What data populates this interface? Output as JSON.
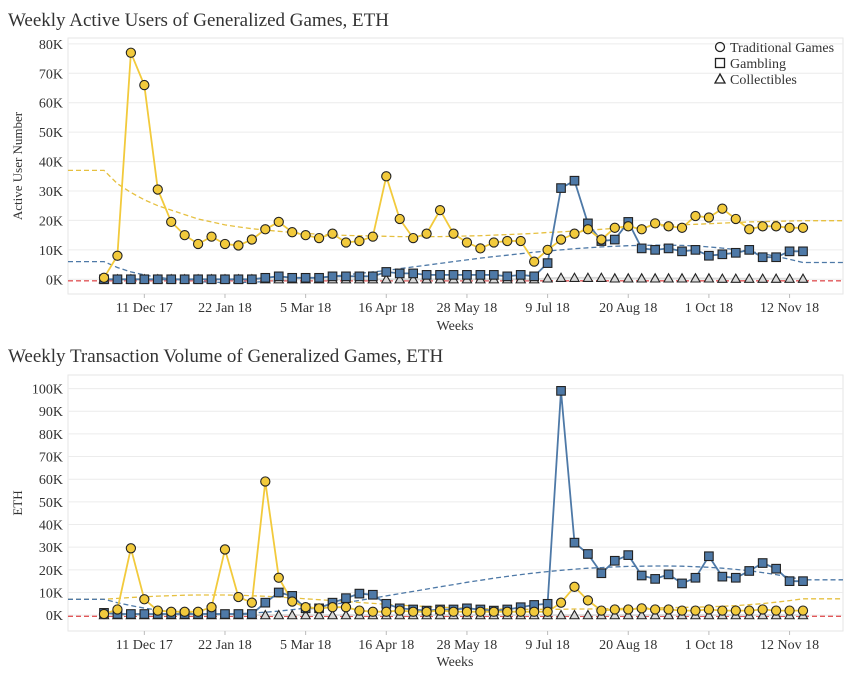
{
  "charts": {
    "colors": {
      "traditional": "#f2ca3c",
      "gambling": "#4e79a7",
      "collectibles": "#d9d9d9",
      "trend_traditional": "#e6c040",
      "trend_gambling": "#4e79a7",
      "trend_collectibles": "#e15759",
      "marker_edge": "#222222"
    },
    "x_tick_labels": [
      "11 Dec 17",
      "22 Jan 18",
      "5 Mar 18",
      "16 Apr 18",
      "28 May 18",
      "9 Jul 18",
      "20 Aug 18",
      "1 Oct 18",
      "12 Nov 18"
    ]
  },
  "chart_data": [
    {
      "type": "line",
      "title": "Weekly Active Users of Generalized Games, ETH",
      "xlabel": "Weeks",
      "ylabel": "Active User Number",
      "ylim": [
        -5000,
        82000
      ],
      "yticks": [
        0,
        10000,
        20000,
        30000,
        40000,
        50000,
        60000,
        70000,
        80000
      ],
      "ytick_labels": [
        "0K",
        "10K",
        "20K",
        "30K",
        "40K",
        "50K",
        "60K",
        "70K",
        "80K"
      ],
      "x": [
        "2017-11-20",
        "2017-11-27",
        "2017-12-04",
        "2017-12-11",
        "2017-12-18",
        "2017-12-25",
        "2018-01-01",
        "2018-01-08",
        "2018-01-15",
        "2018-01-22",
        "2018-01-29",
        "2018-02-05",
        "2018-02-12",
        "2018-02-19",
        "2018-02-26",
        "2018-03-05",
        "2018-03-12",
        "2018-03-19",
        "2018-03-26",
        "2018-04-02",
        "2018-04-09",
        "2018-04-16",
        "2018-04-23",
        "2018-04-30",
        "2018-05-07",
        "2018-05-14",
        "2018-05-21",
        "2018-05-28",
        "2018-06-04",
        "2018-06-11",
        "2018-06-18",
        "2018-06-25",
        "2018-07-02",
        "2018-07-09",
        "2018-07-16",
        "2018-07-23",
        "2018-07-30",
        "2018-08-06",
        "2018-08-13",
        "2018-08-20",
        "2018-08-27",
        "2018-09-03",
        "2018-09-10",
        "2018-09-17",
        "2018-09-24",
        "2018-10-01",
        "2018-10-08",
        "2018-10-15",
        "2018-10-22",
        "2018-10-29",
        "2018-11-05",
        "2018-11-12",
        "2018-11-19"
      ],
      "x_ticks": [
        "2017-12-11",
        "2018-01-22",
        "2018-03-05",
        "2018-04-16",
        "2018-05-28",
        "2018-07-09",
        "2018-08-20",
        "2018-10-01",
        "2018-11-12"
      ],
      "legend": "top-right",
      "grid": true,
      "series": [
        {
          "name": "Traditional Games",
          "marker": "circle",
          "values": [
            500,
            8000,
            77000,
            66000,
            30500,
            19500,
            15000,
            12000,
            14500,
            12000,
            11500,
            13500,
            17000,
            19500,
            16000,
            15000,
            14000,
            15500,
            12500,
            13000,
            14500,
            35000,
            20500,
            14000,
            15500,
            23500,
            15500,
            12500,
            10500,
            12500,
            13000,
            13000,
            6000,
            10000,
            13500,
            15500,
            17000,
            13500,
            17500,
            18000,
            17000,
            19000,
            18000,
            17500,
            21500,
            21000,
            24000,
            20500,
            17000,
            18000,
            18000,
            17500,
            17500
          ],
          "trend": [
            37000,
            32500,
            29500,
            27000,
            25000,
            23500,
            22000,
            20500,
            19500,
            18500,
            17800,
            17200,
            16700,
            16300,
            15900,
            15600,
            15300,
            15100,
            14900,
            14800,
            14700,
            14600,
            14500,
            14500,
            14500,
            14500,
            14600,
            14700,
            14800,
            15000,
            15200,
            15400,
            15600,
            15900,
            16100,
            16400,
            16700,
            17000,
            17300,
            17500,
            17800,
            18000,
            18300,
            18500,
            18700,
            18900,
            19100,
            19300,
            19500,
            19600,
            19700,
            19800,
            19900
          ]
        },
        {
          "name": "Gambling",
          "marker": "square",
          "values": [
            0,
            0,
            0,
            0,
            0,
            0,
            0,
            0,
            0,
            0,
            0,
            0,
            500,
            1000,
            500,
            500,
            500,
            1000,
            1000,
            1000,
            1000,
            2500,
            2000,
            2000,
            1500,
            1500,
            1500,
            1500,
            1500,
            1500,
            1000,
            1500,
            1000,
            5500,
            31000,
            33500,
            19000,
            13000,
            13500,
            19500,
            10500,
            10000,
            10500,
            9500,
            10000,
            8000,
            8500,
            9000,
            10000,
            7500,
            7500,
            9500,
            9500
          ],
          "trend": [
            6000,
            4000,
            2500,
            1500,
            700,
            100,
            -400,
            -800,
            -1000,
            -1100,
            -1100,
            -1000,
            -800,
            -500,
            -200,
            200,
            600,
            1000,
            1500,
            2000,
            2500,
            3000,
            3600,
            4200,
            4800,
            5400,
            6000,
            6600,
            7200,
            7700,
            8200,
            8700,
            9200,
            9600,
            10000,
            10400,
            10700,
            11000,
            11200,
            11400,
            11500,
            11600,
            11600,
            11500,
            11300,
            11000,
            10600,
            10100,
            9500,
            8700,
            7800,
            6800,
            5700
          ]
        },
        {
          "name": "Collectibles",
          "marker": "triangle",
          "values": [
            0,
            0,
            0,
            0,
            0,
            0,
            0,
            0,
            0,
            0,
            0,
            0,
            0,
            0,
            0,
            0,
            0,
            0,
            0,
            0,
            0,
            0,
            0,
            0,
            0,
            0,
            0,
            0,
            0,
            0,
            0,
            0,
            0,
            300,
            500,
            500,
            500,
            500,
            300,
            300,
            300,
            300,
            300,
            300,
            300,
            300,
            200,
            200,
            200,
            200,
            200,
            200,
            200
          ],
          "trend": [
            -500,
            -500,
            -500,
            -500,
            -500,
            -500,
            -500,
            -500,
            -500,
            -500,
            -500,
            -500,
            -500,
            -500,
            -500,
            -500,
            -500,
            -500,
            -500,
            -500,
            -500,
            -500,
            -500,
            -500,
            -500,
            -500,
            -500,
            -500,
            -500,
            -500,
            -500,
            -500,
            -500,
            -500,
            -500,
            -500,
            -500,
            -500,
            -500,
            -500,
            -500,
            -500,
            -500,
            -500,
            -500,
            -500,
            -500,
            -500,
            -500,
            -500,
            -500,
            -500,
            -500
          ]
        }
      ]
    },
    {
      "type": "line",
      "title": "Weekly Transaction Volume of Generalized Games, ETH",
      "xlabel": "Weeks",
      "ylabel": "ETH",
      "ylim": [
        -7000,
        106000
      ],
      "yticks": [
        0,
        10000,
        20000,
        30000,
        40000,
        50000,
        60000,
        70000,
        80000,
        90000,
        100000
      ],
      "ytick_labels": [
        "0K",
        "10K",
        "20K",
        "30K",
        "40K",
        "50K",
        "60K",
        "70K",
        "80K",
        "90K",
        "100K"
      ],
      "x": [
        "2017-11-20",
        "2017-11-27",
        "2017-12-04",
        "2017-12-11",
        "2017-12-18",
        "2017-12-25",
        "2018-01-01",
        "2018-01-08",
        "2018-01-15",
        "2018-01-22",
        "2018-01-29",
        "2018-02-05",
        "2018-02-12",
        "2018-02-19",
        "2018-02-26",
        "2018-03-05",
        "2018-03-12",
        "2018-03-19",
        "2018-03-26",
        "2018-04-02",
        "2018-04-09",
        "2018-04-16",
        "2018-04-23",
        "2018-04-30",
        "2018-05-07",
        "2018-05-14",
        "2018-05-21",
        "2018-05-28",
        "2018-06-04",
        "2018-06-11",
        "2018-06-18",
        "2018-06-25",
        "2018-07-02",
        "2018-07-09",
        "2018-07-16",
        "2018-07-23",
        "2018-07-30",
        "2018-08-06",
        "2018-08-13",
        "2018-08-20",
        "2018-08-27",
        "2018-09-03",
        "2018-09-10",
        "2018-09-17",
        "2018-09-24",
        "2018-10-01",
        "2018-10-08",
        "2018-10-15",
        "2018-10-22",
        "2018-10-29",
        "2018-11-05",
        "2018-11-12",
        "2018-11-19"
      ],
      "x_ticks": [
        "2017-12-11",
        "2018-01-22",
        "2018-03-05",
        "2018-04-16",
        "2018-05-28",
        "2018-07-09",
        "2018-08-20",
        "2018-10-01",
        "2018-11-12"
      ],
      "legend": "none",
      "grid": true,
      "series": [
        {
          "name": "Traditional Games",
          "marker": "circle",
          "values": [
            500,
            2500,
            29500,
            7000,
            2000,
            1500,
            1500,
            1500,
            3500,
            29000,
            8000,
            5500,
            59000,
            16500,
            6000,
            3500,
            3000,
            3500,
            3500,
            2000,
            1500,
            1500,
            2000,
            1500,
            1500,
            2000,
            1500,
            1500,
            1500,
            1500,
            1500,
            1500,
            1500,
            1500,
            5500,
            12500,
            6500,
            2000,
            2500,
            2500,
            3000,
            2500,
            2500,
            2000,
            2000,
            2500,
            2000,
            2000,
            2000,
            2500,
            2000,
            2000,
            2000
          ],
          "trend": [
            7000,
            7400,
            7800,
            8100,
            8400,
            8600,
            8800,
            8900,
            8900,
            8900,
            8800,
            8600,
            8300,
            8000,
            7600,
            7200,
            6800,
            6400,
            6000,
            5600,
            5200,
            4800,
            4400,
            4100,
            3800,
            3500,
            3300,
            3100,
            2900,
            2800,
            2700,
            2600,
            2600,
            2600,
            2600,
            2700,
            2700,
            2800,
            2900,
            3000,
            3100,
            3200,
            3300,
            3400,
            3500,
            3700,
            3900,
            4200,
            4600,
            5100,
            5700,
            6400,
            7200
          ]
        },
        {
          "name": "Gambling",
          "marker": "square",
          "values": [
            1000,
            500,
            500,
            500,
            500,
            500,
            500,
            500,
            500,
            500,
            500,
            500,
            5500,
            10000,
            8500,
            3000,
            3000,
            5500,
            7500,
            9500,
            9000,
            5000,
            3000,
            2500,
            2000,
            2500,
            2500,
            3000,
            2500,
            2000,
            2500,
            3500,
            4500,
            5000,
            99000,
            32000,
            27000,
            18500,
            24000,
            26500,
            17500,
            16000,
            18000,
            14000,
            16500,
            26000,
            17000,
            16500,
            19500,
            23000,
            20500,
            15000,
            15000
          ],
          "trend": [
            7000,
            5500,
            4200,
            3100,
            2200,
            1500,
            1000,
            700,
            500,
            500,
            600,
            900,
            1300,
            1800,
            2400,
            3100,
            3900,
            4700,
            5600,
            6500,
            7500,
            8500,
            9500,
            10500,
            11500,
            12500,
            13500,
            14500,
            15400,
            16300,
            17100,
            17900,
            18600,
            19200,
            19800,
            20300,
            20700,
            21000,
            21300,
            21500,
            21600,
            21700,
            21700,
            21600,
            21400,
            21100,
            20700,
            20200,
            19600,
            18800,
            17900,
            16800,
            15600
          ]
        },
        {
          "name": "Collectibles",
          "marker": "triangle",
          "values": [
            0,
            0,
            0,
            0,
            0,
            0,
            0,
            0,
            0,
            0,
            0,
            0,
            0,
            0,
            0,
            0,
            0,
            0,
            0,
            0,
            0,
            0,
            0,
            0,
            0,
            0,
            0,
            0,
            0,
            0,
            0,
            0,
            0,
            0,
            0,
            0,
            0,
            0,
            0,
            0,
            0,
            0,
            0,
            0,
            0,
            0,
            0,
            0,
            0,
            0,
            0,
            0,
            0
          ],
          "trend": [
            -500,
            -500,
            -500,
            -500,
            -500,
            -500,
            -500,
            -500,
            -500,
            -500,
            -500,
            -500,
            -500,
            -500,
            -500,
            -500,
            -500,
            -500,
            -500,
            -500,
            -500,
            -500,
            -500,
            -500,
            -500,
            -500,
            -500,
            -500,
            -500,
            -500,
            -500,
            -500,
            -500,
            -500,
            -500,
            -500,
            -500,
            -500,
            -500,
            -500,
            -500,
            -500,
            -500,
            -500,
            -500,
            -500,
            -500,
            -500,
            -500,
            -500,
            -500,
            -500,
            -500
          ]
        }
      ]
    }
  ]
}
